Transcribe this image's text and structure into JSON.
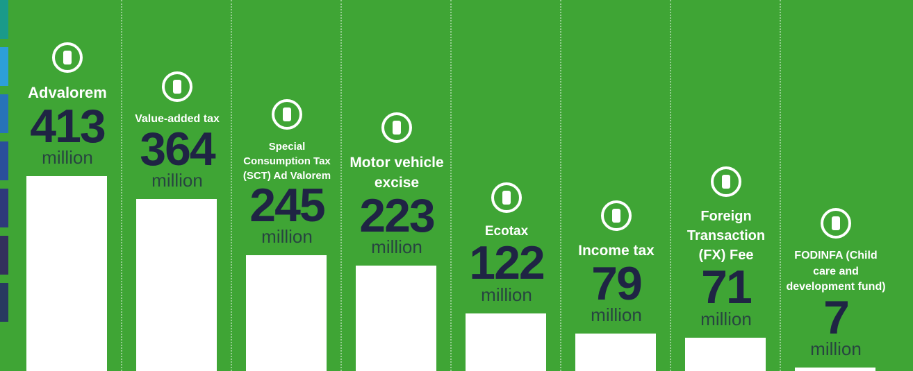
{
  "chart_data": {
    "type": "bar",
    "categories": [
      "Advalorem",
      "Value-added tax",
      "Special Consumption Tax (SCT) Ad Valorem",
      "Motor vehicle excise",
      "Ecotax",
      "Income tax",
      "Foreign Transaction (FX) Fee",
      "FODINFA (Child care and development fund)"
    ],
    "values": [
      413,
      364,
      245,
      223,
      122,
      79,
      71,
      7
    ],
    "unit": "million",
    "color": "#ffffff"
  }
}
